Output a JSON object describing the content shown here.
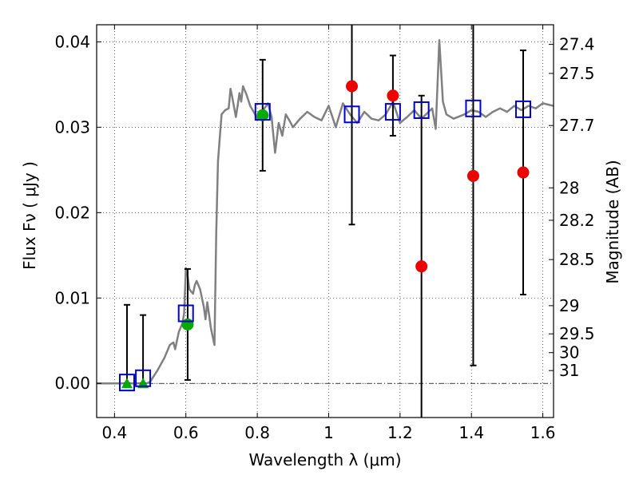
{
  "chart_data": {
    "type": "scatter",
    "xlabel": "Wavelength  λ (μm)",
    "ylabel": "Flux  Fν ( μJy )",
    "ylabel_right": "Magnitude (AB)",
    "xlim": [
      0.35,
      1.63
    ],
    "ylim": [
      -0.004,
      0.042
    ],
    "grid": true,
    "x_ticks": [
      0.4,
      0.6,
      0.8,
      1.0,
      1.2,
      1.4,
      1.6
    ],
    "x_tick_labels": [
      "0.4",
      "0.6",
      "0.8",
      "1",
      "1.2",
      "1.4",
      "1.6"
    ],
    "y_ticks": [
      0.0,
      0.01,
      0.02,
      0.03,
      0.04
    ],
    "y_tick_labels": [
      "0.00",
      "0.01",
      "0.02",
      "0.03",
      "0.04"
    ],
    "mag_ticks": [
      {
        "label": "27.4",
        "flux": 0.0397
      },
      {
        "label": "27.5",
        "flux": 0.0363
      },
      {
        "label": "27.7",
        "flux": 0.0302
      },
      {
        "label": "28",
        "flux": 0.0229
      },
      {
        "label": "28.2",
        "flux": 0.0191
      },
      {
        "label": "28.5",
        "flux": 0.0145
      },
      {
        "label": "29",
        "flux": 0.0091
      },
      {
        "label": "29.5",
        "flux": 0.0058
      },
      {
        "label": "30",
        "flux": 0.0036
      },
      {
        "label": "31",
        "flux": 0.0015
      }
    ],
    "series": [
      {
        "name": "model_spectrum",
        "style": "line",
        "color": "#808080",
        "x": [
          0.35,
          0.49,
          0.5,
          0.52,
          0.54,
          0.555,
          0.565,
          0.57,
          0.58,
          0.585,
          0.59,
          0.595,
          0.6,
          0.605,
          0.61,
          0.62,
          0.625,
          0.63,
          0.64,
          0.645,
          0.65,
          0.655,
          0.66,
          0.665,
          0.67,
          0.675,
          0.68,
          0.685,
          0.69,
          0.7,
          0.71,
          0.72,
          0.725,
          0.73,
          0.74,
          0.745,
          0.75,
          0.755,
          0.76,
          0.77,
          0.78,
          0.79,
          0.8,
          0.81,
          0.82,
          0.83,
          0.84,
          0.85,
          0.86,
          0.87,
          0.88,
          0.89,
          0.9,
          0.92,
          0.94,
          0.96,
          0.98,
          1.0,
          1.02,
          1.04,
          1.06,
          1.08,
          1.1,
          1.12,
          1.14,
          1.16,
          1.18,
          1.2,
          1.22,
          1.24,
          1.26,
          1.28,
          1.29,
          1.3,
          1.31,
          1.32,
          1.33,
          1.35,
          1.38,
          1.4,
          1.42,
          1.44,
          1.46,
          1.48,
          1.5,
          1.52,
          1.54,
          1.56,
          1.58,
          1.6,
          1.63
        ],
        "y": [
          0.0,
          0.0,
          0.0002,
          0.0015,
          0.003,
          0.0045,
          0.0048,
          0.004,
          0.006,
          0.0065,
          0.007,
          0.0082,
          0.0135,
          0.0125,
          0.011,
          0.0105,
          0.0115,
          0.012,
          0.011,
          0.01,
          0.009,
          0.0075,
          0.0095,
          0.008,
          0.0065,
          0.0055,
          0.0045,
          0.0175,
          0.026,
          0.0315,
          0.032,
          0.0322,
          0.0345,
          0.0335,
          0.0312,
          0.0325,
          0.034,
          0.033,
          0.0348,
          0.0338,
          0.0325,
          0.0318,
          0.031,
          0.0315,
          0.0322,
          0.0328,
          0.0312,
          0.027,
          0.0305,
          0.029,
          0.0315,
          0.0308,
          0.03,
          0.031,
          0.0318,
          0.0312,
          0.0308,
          0.0325,
          0.03,
          0.0328,
          0.0315,
          0.0305,
          0.0318,
          0.031,
          0.0308,
          0.0315,
          0.033,
          0.0305,
          0.0312,
          0.032,
          0.031,
          0.0318,
          0.0322,
          0.0298,
          0.0402,
          0.033,
          0.0315,
          0.031,
          0.0315,
          0.032,
          0.0318,
          0.0312,
          0.0318,
          0.0322,
          0.0318,
          0.0325,
          0.032,
          0.0325,
          0.0322,
          0.0328,
          0.0325
        ]
      },
      {
        "name": "model_band_flux",
        "style": "open-square",
        "color": "#0000cc",
        "x": [
          0.435,
          0.48,
          0.6,
          0.815,
          1.065,
          1.18,
          1.26,
          1.405,
          1.545
        ],
        "y": [
          0.0001,
          0.0006,
          0.0082,
          0.0318,
          0.0315,
          0.0318,
          0.032,
          0.0322,
          0.0321
        ]
      },
      {
        "name": "detections",
        "style": "filled-circle",
        "color": "#00aa00",
        "x": [
          0.605,
          0.815
        ],
        "y": [
          0.0069,
          0.0314
        ],
        "yerr_low": [
          0.0065,
          0.0065
        ],
        "yerr_high": [
          0.0065,
          0.0065
        ]
      },
      {
        "name": "upper_limits",
        "style": "filled-triangle",
        "color": "#00aa00",
        "x": [
          0.435,
          0.48
        ],
        "y": [
          0.0,
          0.0
        ],
        "yerr_low": [
          0.0,
          0.0
        ],
        "yerr_high": [
          0.0092,
          0.008
        ]
      },
      {
        "name": "observed_flux",
        "style": "filled-circle",
        "color": "#ee0000",
        "x": [
          1.065,
          1.18,
          1.26,
          1.405,
          1.545
        ],
        "y": [
          0.0348,
          0.0337,
          0.0137,
          0.0243,
          0.0247
        ],
        "yerr_low": [
          0.0162,
          0.0047,
          0.02,
          0.0222,
          0.0143
        ],
        "yerr_high": [
          0.0162,
          0.0047,
          0.02,
          0.0222,
          0.0143
        ]
      }
    ]
  }
}
